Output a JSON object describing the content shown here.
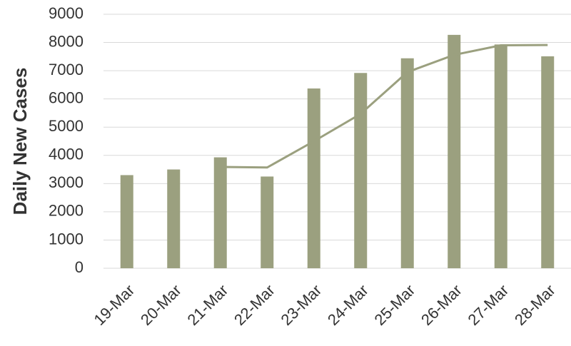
{
  "chart_data": {
    "type": "bar",
    "y_label": "Daily New Cases",
    "categories": [
      "19-Mar",
      "20-Mar",
      "21-Mar",
      "22-Mar",
      "23-Mar",
      "24-Mar",
      "25-Mar",
      "26-Mar",
      "27-Mar",
      "28-Mar"
    ],
    "series": [
      {
        "type": "bar",
        "color": "#9ba07f",
        "values": [
          3300,
          3500,
          3930,
          3250,
          6370,
          6920,
          7440,
          8270,
          7930,
          7510
        ]
      },
      {
        "type": "line",
        "color": "#9ba07f",
        "values": [
          null,
          null,
          3590,
          3570,
          4500,
          5470,
          6950,
          7560,
          7900,
          7910
        ]
      }
    ],
    "ylim": [
      0,
      9000
    ],
    "yticks": [
      0,
      1000,
      2000,
      3000,
      4000,
      5000,
      6000,
      7000,
      8000,
      9000
    ],
    "grid": true
  }
}
